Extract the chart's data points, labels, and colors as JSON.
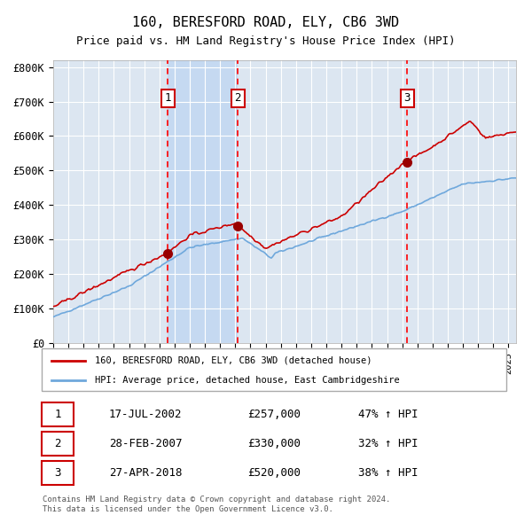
{
  "title": "160, BERESFORD ROAD, ELY, CB6 3WD",
  "subtitle": "Price paid vs. HM Land Registry's House Price Index (HPI)",
  "legend_line1": "160, BERESFORD ROAD, ELY, CB6 3WD (detached house)",
  "legend_line2": "HPI: Average price, detached house, East Cambridgeshire",
  "transactions": [
    {
      "num": 1,
      "date": "17-JUL-2002",
      "price": 257000,
      "hpi_change": "47% ↑ HPI",
      "date_decimal": 2002.54
    },
    {
      "num": 2,
      "date": "28-FEB-2007",
      "price": 330000,
      "hpi_change": "32% ↑ HPI",
      "date_decimal": 2007.16
    },
    {
      "num": 3,
      "date": "27-APR-2018",
      "price": 520000,
      "hpi_change": "38% ↑ HPI",
      "date_decimal": 2018.32
    }
  ],
  "hpi_line_color": "#6fa8dc",
  "price_line_color": "#cc0000",
  "dot_color": "#990000",
  "vline_color": "#ff0000",
  "background_color": "#ffffff",
  "plot_bg_color": "#dce6f1",
  "grid_color": "#ffffff",
  "shaded_region_color": "#c5d9f1",
  "footnote": "Contains HM Land Registry data © Crown copyright and database right 2024.\nThis data is licensed under the Open Government Licence v3.0.",
  "ylim": [
    0,
    820000
  ],
  "yticks": [
    0,
    100000,
    200000,
    300000,
    400000,
    500000,
    600000,
    700000,
    800000
  ],
  "xstart": 1995.0,
  "xend": 2025.5
}
